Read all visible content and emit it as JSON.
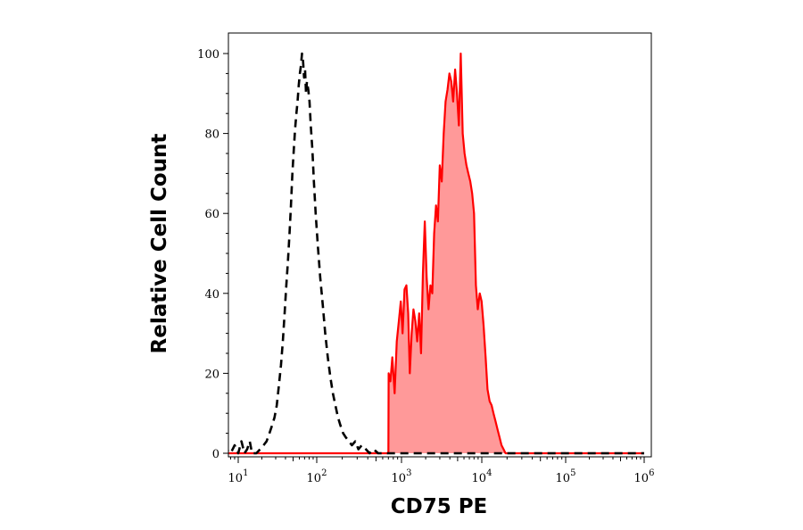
{
  "chart_data": {
    "type": "area",
    "title": "",
    "xlabel": "CD75 PE",
    "ylabel": "Relative Cell Count",
    "x_scale": "log",
    "xlim": [
      6,
      1000000
    ],
    "ylim": [
      0,
      100
    ],
    "grid": false,
    "x_ticks": [
      {
        "value": 10,
        "base": "10",
        "exp": "1"
      },
      {
        "value": 100,
        "base": "10",
        "exp": "2"
      },
      {
        "value": 1000,
        "base": "10",
        "exp": "3"
      },
      {
        "value": 10000,
        "base": "10",
        "exp": "4"
      },
      {
        "value": 100000,
        "base": "10",
        "exp": "5"
      },
      {
        "value": 1000000,
        "base": "10",
        "exp": "6"
      }
    ],
    "y_ticks": [
      "0",
      "20",
      "40",
      "60",
      "80",
      "100"
    ],
    "series": [
      {
        "style": "dashed-line",
        "color": "#000000",
        "points": [
          [
            6.5,
            0
          ],
          [
            7,
            1
          ],
          [
            8,
            0
          ],
          [
            9,
            2
          ],
          [
            10,
            0
          ],
          [
            11,
            3
          ],
          [
            12,
            0
          ],
          [
            13,
            1
          ],
          [
            14,
            3
          ],
          [
            15,
            0
          ],
          [
            17,
            0
          ],
          [
            19,
            1
          ],
          [
            21,
            2
          ],
          [
            23,
            3
          ],
          [
            25,
            5
          ],
          [
            27,
            7
          ],
          [
            29,
            9
          ],
          [
            31,
            12
          ],
          [
            33,
            17
          ],
          [
            35,
            22
          ],
          [
            37,
            28
          ],
          [
            39,
            35
          ],
          [
            41,
            42
          ],
          [
            43,
            48
          ],
          [
            45,
            55
          ],
          [
            47,
            62
          ],
          [
            49,
            70
          ],
          [
            51,
            76
          ],
          [
            53,
            81
          ],
          [
            55,
            85
          ],
          [
            57,
            88
          ],
          [
            59,
            92
          ],
          [
            61,
            95
          ],
          [
            63,
            97
          ],
          [
            65,
            100
          ],
          [
            67,
            98
          ],
          [
            69,
            94
          ],
          [
            71,
            96
          ],
          [
            73,
            90
          ],
          [
            75,
            93
          ],
          [
            78,
            91
          ],
          [
            81,
            88
          ],
          [
            84,
            82
          ],
          [
            88,
            76
          ],
          [
            92,
            68
          ],
          [
            97,
            60
          ],
          [
            103,
            52
          ],
          [
            110,
            44
          ],
          [
            118,
            37
          ],
          [
            126,
            30
          ],
          [
            135,
            24
          ],
          [
            145,
            19
          ],
          [
            155,
            15
          ],
          [
            166,
            12
          ],
          [
            178,
            9
          ],
          [
            190,
            7
          ],
          [
            205,
            5
          ],
          [
            220,
            4
          ],
          [
            240,
            3
          ],
          [
            260,
            2
          ],
          [
            285,
            3
          ],
          [
            310,
            1
          ],
          [
            340,
            2
          ],
          [
            380,
            1
          ],
          [
            420,
            0
          ],
          [
            470,
            1
          ],
          [
            530,
            0
          ],
          [
            600,
            0
          ],
          [
            700,
            0
          ],
          [
            1000000,
            0
          ]
        ]
      },
      {
        "style": "filled-area",
        "color": "#ff0000",
        "fill": "#ff9999",
        "points": [
          [
            6.5,
            0
          ],
          [
            700,
            0
          ],
          [
            705,
            20
          ],
          [
            740,
            18
          ],
          [
            780,
            24
          ],
          [
            830,
            15
          ],
          [
            880,
            28
          ],
          [
            930,
            33
          ],
          [
            980,
            38
          ],
          [
            1030,
            30
          ],
          [
            1090,
            41
          ],
          [
            1150,
            42
          ],
          [
            1210,
            35
          ],
          [
            1270,
            20
          ],
          [
            1340,
            30
          ],
          [
            1410,
            36
          ],
          [
            1490,
            33
          ],
          [
            1570,
            28
          ],
          [
            1660,
            35
          ],
          [
            1750,
            25
          ],
          [
            1850,
            45
          ],
          [
            1950,
            58
          ],
          [
            2060,
            44
          ],
          [
            2170,
            36
          ],
          [
            2290,
            42
          ],
          [
            2420,
            40
          ],
          [
            2550,
            55
          ],
          [
            2690,
            62
          ],
          [
            2840,
            58
          ],
          [
            3000,
            72
          ],
          [
            3170,
            68
          ],
          [
            3350,
            80
          ],
          [
            3540,
            88
          ],
          [
            3740,
            91
          ],
          [
            3950,
            95
          ],
          [
            4170,
            93
          ],
          [
            4400,
            88
          ],
          [
            4650,
            96
          ],
          [
            4910,
            90
          ],
          [
            5180,
            82
          ],
          [
            5470,
            100
          ],
          [
            5780,
            80
          ],
          [
            6100,
            75
          ],
          [
            6440,
            72
          ],
          [
            6800,
            70
          ],
          [
            7180,
            68
          ],
          [
            7580,
            65
          ],
          [
            8000,
            60
          ],
          [
            8450,
            42
          ],
          [
            8920,
            36
          ],
          [
            9420,
            40
          ],
          [
            9950,
            38
          ],
          [
            10500,
            32
          ],
          [
            11100,
            24
          ],
          [
            11700,
            16
          ],
          [
            12400,
            13
          ],
          [
            13100,
            12
          ],
          [
            13800,
            10
          ],
          [
            14600,
            8
          ],
          [
            15400,
            6
          ],
          [
            16300,
            4
          ],
          [
            17200,
            2
          ],
          [
            18200,
            1
          ],
          [
            19200,
            0
          ],
          [
            25000,
            0
          ],
          [
            1000000,
            0
          ]
        ]
      }
    ]
  }
}
